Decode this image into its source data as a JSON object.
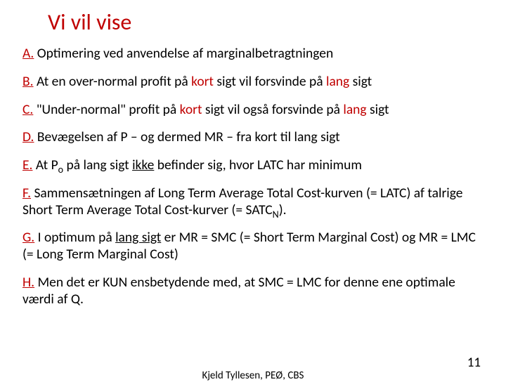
{
  "title": "Vi vil vise",
  "itemA": {
    "label": "A.",
    "pre": " Optimering ved anvendelse af marginalbetragtningen"
  },
  "itemB": {
    "label": "B.",
    "pre": " At en over-normal profit på ",
    "kort": "kort",
    "mid": " sigt vil forsvinde på ",
    "lang": "lang",
    "post": " sigt"
  },
  "itemC": {
    "label": "C.",
    "pre": " \"Under-normal\" profit på ",
    "kort": "kort",
    "mid": " sigt vil også forsvinde på ",
    "lang": "lang",
    "post": " sigt"
  },
  "itemD": {
    "label": "D.",
    "text": " Bevægelsen af P – og dermed MR – fra kort til lang sigt"
  },
  "itemE": {
    "label": "E.",
    "pre": " At P",
    "sub": "o",
    "mid1": " på lang sigt ",
    "ikke": "ikke",
    "post": " befinder sig, hvor LATC har minimum"
  },
  "itemF": {
    "label": "F.",
    "pre": " Sammensætningen af Long Term Average Total Cost-kurven (= LATC) af talrige Short Term Average Total Cost-kurver (= SATC",
    "sub": "N",
    "post": ")."
  },
  "itemG": {
    "label": "G.",
    "pre": " I optimum på ",
    "lang": "lang sigt",
    "post": " er MR = SMC (= Short Term Marginal Cost) og MR = LMC (= Long Term Marginal Cost)"
  },
  "itemH": {
    "label": "H.",
    "pre": " Men det er KUN ensbetydende med, at SMC = LMC for denne ene optimale værdi af Q."
  },
  "footer": {
    "author": "Kjeld Tyllesen, PEØ, CBS",
    "page": "11"
  },
  "colors": {
    "accent": "#c00000",
    "text": "#000000",
    "background": "#ffffff"
  }
}
